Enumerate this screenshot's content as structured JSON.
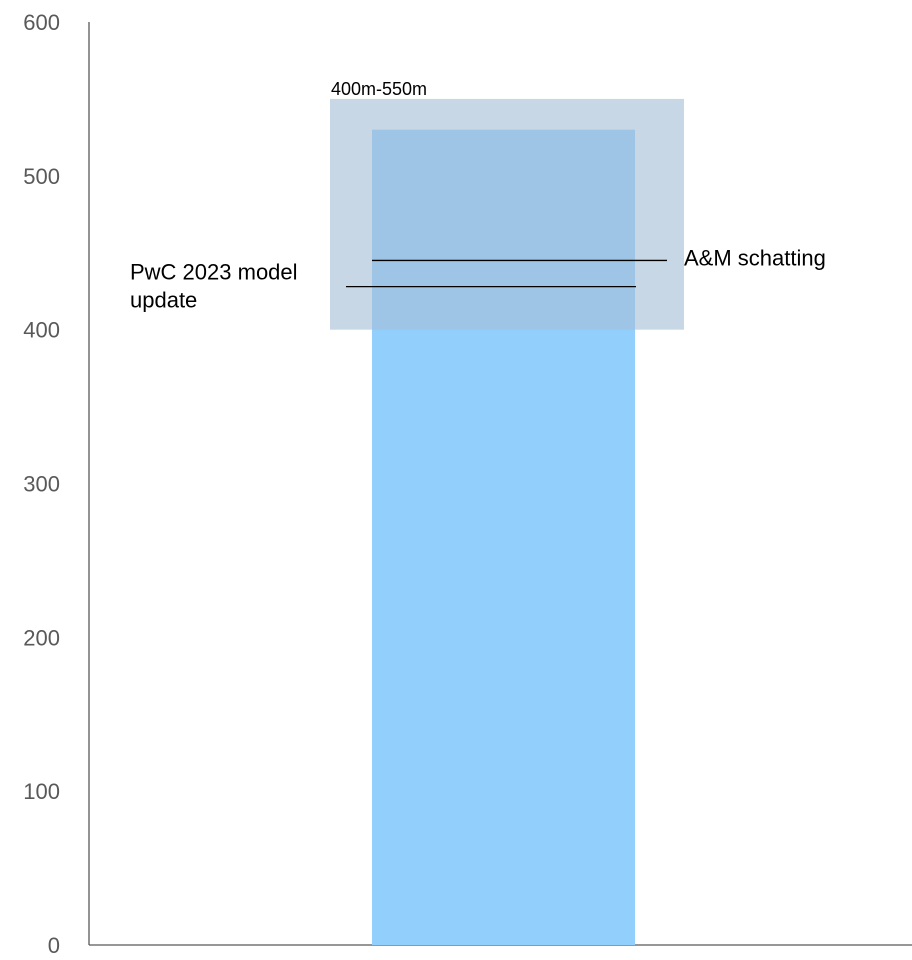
{
  "chart_data": {
    "type": "bar",
    "categories": [
      ""
    ],
    "series": [
      {
        "values": [
          530
        ]
      }
    ],
    "ylim": [
      0,
      600
    ],
    "yticks": [
      0,
      100,
      200,
      300,
      400,
      500,
      600
    ],
    "grid": false,
    "range_band": {
      "low": 400,
      "high": 550,
      "label": "400m-550m"
    },
    "markers": [
      {
        "label": "A&M schatting",
        "value": 445
      },
      {
        "label_lines": [
          "PwC 2023 model",
          "update"
        ],
        "value": 428
      }
    ],
    "colors": {
      "bar": "#92cffd",
      "band": "#a7bed6",
      "axis": "#595959",
      "marker_line": "#000000"
    }
  }
}
